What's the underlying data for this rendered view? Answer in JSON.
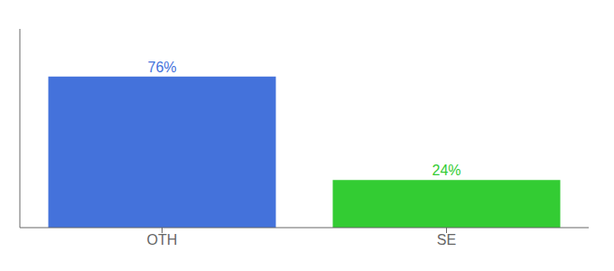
{
  "chart_data": {
    "type": "bar",
    "categories": [
      "OTH",
      "SE"
    ],
    "values": [
      76,
      24
    ],
    "value_labels": [
      "76%",
      "24%"
    ],
    "colors": [
      "#4472db",
      "#33cc33"
    ],
    "ylim": [
      0,
      100
    ],
    "data_labels": true,
    "tick_labels": "x",
    "grid": false
  }
}
